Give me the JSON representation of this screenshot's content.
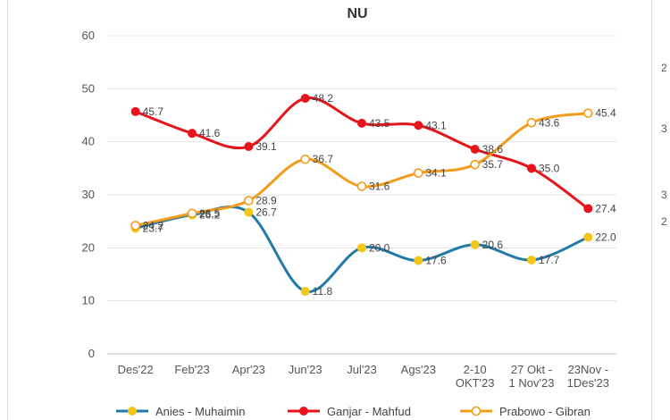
{
  "chart_data": {
    "type": "line",
    "title": "NU",
    "xlabel": "",
    "ylabel": "",
    "categories": [
      [
        "Des'22"
      ],
      [
        "Feb'23"
      ],
      [
        "Apr'23"
      ],
      [
        "Jun'23"
      ],
      [
        "Jul'23"
      ],
      [
        "Ags'23"
      ],
      [
        "2-10",
        "OKT'23"
      ],
      [
        "27 Okt -",
        "1 Nov'23"
      ],
      [
        "23Nov -",
        "1Des'23"
      ]
    ],
    "ylim": [
      0,
      60
    ],
    "yticks": [
      0,
      10,
      20,
      30,
      40,
      50,
      60
    ],
    "grid": true,
    "legend_position": "bottom",
    "series": [
      {
        "name": "Anies - Muhaimin",
        "color": "#2379a8",
        "marker": "filled",
        "marker_color": "#f5c518",
        "values": [
          23.7,
          26.2,
          26.7,
          11.8,
          20.0,
          17.6,
          20.6,
          17.7,
          22.0
        ],
        "labels": [
          "23.7",
          "26.2",
          "26.7",
          "11.8",
          "20.0",
          "17.6",
          "20.6",
          "17.7",
          "22.0"
        ]
      },
      {
        "name": "Ganjar - Mahfud",
        "color": "#e8141b",
        "marker": "filled",
        "marker_color": "#e8141b",
        "values": [
          45.7,
          41.6,
          39.1,
          48.2,
          43.5,
          43.1,
          38.6,
          35.0,
          27.4
        ],
        "labels": [
          "45.7",
          "41.6",
          "39.1",
          "48.2",
          "43.5",
          "43.1",
          "38.6",
          "35.0",
          "27.4"
        ]
      },
      {
        "name": "Prabowo - Gibran",
        "color": "#f29b1d",
        "marker": "hollow",
        "marker_color": "#f29b1d",
        "values": [
          24.2,
          26.5,
          28.9,
          36.7,
          31.6,
          34.1,
          35.7,
          43.6,
          45.4
        ],
        "labels": [
          "24.2",
          "26.5",
          "28.9",
          "36.7",
          "31.6",
          "34.1",
          "35.7",
          "43.6",
          "45.4"
        ]
      }
    ]
  }
}
